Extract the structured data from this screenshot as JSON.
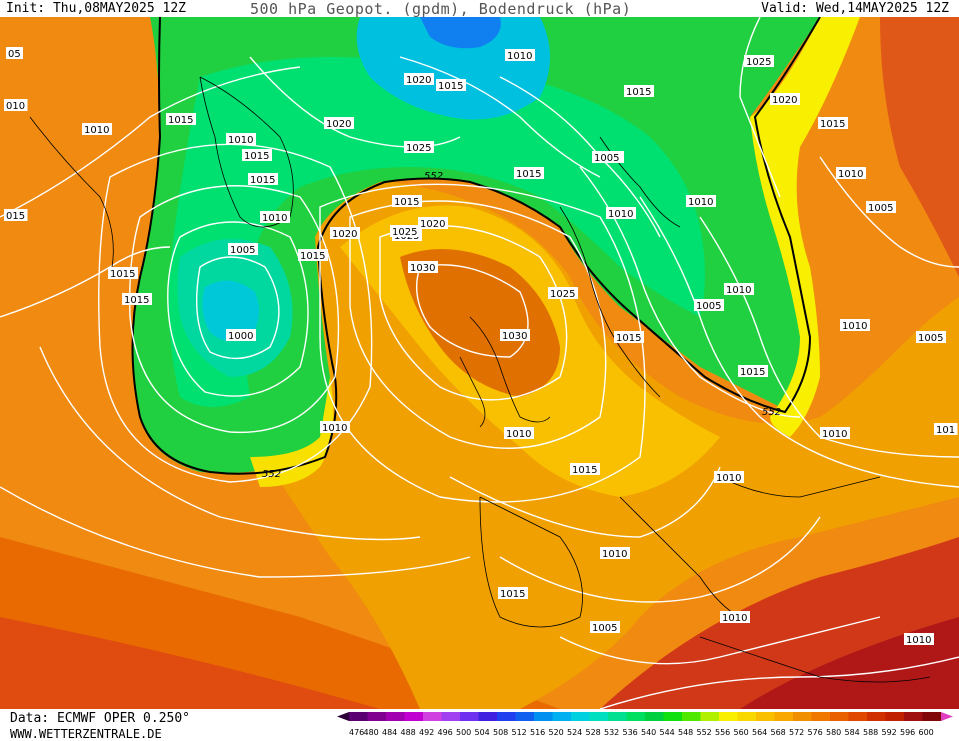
{
  "header": {
    "init": "Init: Thu,08MAY2025 12Z",
    "title": "500 hPa Geopot. (gpdm), Bodendruck (hPa)",
    "valid": "Valid: Wed,14MAY2025 12Z"
  },
  "footer": {
    "data_source": "Data: ECMWF OPER 0.250°",
    "website": "WWW.WETTERZENTRALE.DE"
  },
  "legend": {
    "ticks": [
      "476",
      "480",
      "484",
      "488",
      "492",
      "496",
      "500",
      "504",
      "508",
      "512",
      "516",
      "520",
      "524",
      "528",
      "532",
      "536",
      "540",
      "544",
      "548",
      "552",
      "556",
      "560",
      "564",
      "568",
      "572",
      "576",
      "580",
      "584",
      "588",
      "592",
      "596",
      "600"
    ],
    "colors": [
      "#5a0070",
      "#800090",
      "#a000b0",
      "#c000d0",
      "#d040e0",
      "#a040f0",
      "#7030f0",
      "#4020e0",
      "#2040f0",
      "#1060f0",
      "#0090f0",
      "#00b0f0",
      "#00d0e0",
      "#00e0c0",
      "#00e090",
      "#00e060",
      "#00d040",
      "#10e010",
      "#50e800",
      "#b0f000",
      "#f8f000",
      "#f8d800",
      "#f8c000",
      "#f8a800",
      "#f09000",
      "#f07800",
      "#e86000",
      "#e04800",
      "#d03000",
      "#c02000",
      "#a01010",
      "#800808"
    ],
    "arrow_left_color": "#2d0038",
    "arrow_right_color": "#e040c0"
  },
  "map": {
    "geopotential_label": "552",
    "isobar_labels": [
      {
        "text": "05"
      },
      {
        "text": "010"
      },
      {
        "text": "1010"
      },
      {
        "text": "1015"
      },
      {
        "text": "1010"
      },
      {
        "text": "1015"
      },
      {
        "text": "1015"
      },
      {
        "text": "1010"
      },
      {
        "text": "1005"
      },
      {
        "text": "1015"
      },
      {
        "text": "1015"
      },
      {
        "text": "015"
      },
      {
        "text": "1000"
      },
      {
        "text": "1020"
      },
      {
        "text": "1015"
      },
      {
        "text": "1020"
      },
      {
        "text": "1025"
      },
      {
        "text": "1010"
      },
      {
        "text": "1015"
      },
      {
        "text": "1025"
      },
      {
        "text": "1005"
      },
      {
        "text": "1015"
      },
      {
        "text": "1015"
      },
      {
        "text": "1020"
      },
      {
        "text": "1025"
      },
      {
        "text": "1030"
      },
      {
        "text": "1025"
      },
      {
        "text": "1030"
      },
      {
        "text": "1015"
      },
      {
        "text": "1020"
      },
      {
        "text": "1015"
      },
      {
        "text": "1010"
      },
      {
        "text": "1005"
      },
      {
        "text": "1010"
      },
      {
        "text": "1015"
      },
      {
        "text": "1010"
      },
      {
        "text": "1020"
      },
      {
        "text": "1025"
      },
      {
        "text": "1015"
      },
      {
        "text": "1010"
      },
      {
        "text": "1005"
      },
      {
        "text": "1010"
      },
      {
        "text": "1015"
      },
      {
        "text": "1005"
      },
      {
        "text": "1010"
      },
      {
        "text": "1010"
      },
      {
        "text": "1015"
      },
      {
        "text": "1010"
      },
      {
        "text": "1005"
      },
      {
        "text": "1010"
      },
      {
        "text": "1010"
      },
      {
        "text": "101"
      },
      {
        "text": "1005"
      },
      {
        "text": "1010"
      },
      {
        "text": "1015"
      },
      {
        "text": "1010"
      }
    ]
  }
}
